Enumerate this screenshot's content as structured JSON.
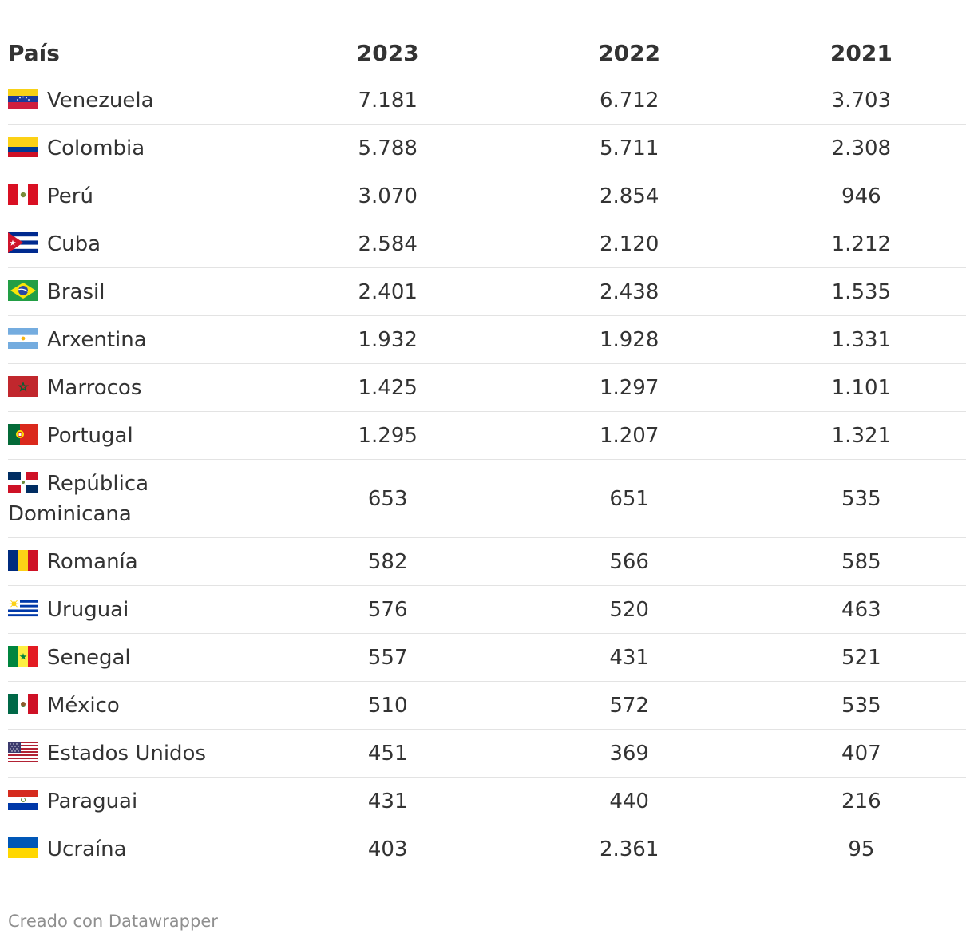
{
  "chart_data": {
    "type": "table",
    "columns": [
      "País",
      "2023",
      "2022",
      "2021"
    ],
    "rows": [
      {
        "country": "Venezuela",
        "flag": "venezuela-flag-icon",
        "v2023": "7.181",
        "v2022": "6.712",
        "v2021": "3.703"
      },
      {
        "country": "Colombia",
        "flag": "colombia-flag-icon",
        "v2023": "5.788",
        "v2022": "5.711",
        "v2021": "2.308"
      },
      {
        "country": "Perú",
        "flag": "peru-flag-icon",
        "v2023": "3.070",
        "v2022": "2.854",
        "v2021": "946"
      },
      {
        "country": "Cuba",
        "flag": "cuba-flag-icon",
        "v2023": "2.584",
        "v2022": "2.120",
        "v2021": "1.212"
      },
      {
        "country": "Brasil",
        "flag": "brazil-flag-icon",
        "v2023": "2.401",
        "v2022": "2.438",
        "v2021": "1.535"
      },
      {
        "country": "Arxentina",
        "flag": "argentina-flag-icon",
        "v2023": "1.932",
        "v2022": "1.928",
        "v2021": "1.331"
      },
      {
        "country": "Marrocos",
        "flag": "morocco-flag-icon",
        "v2023": "1.425",
        "v2022": "1.297",
        "v2021": "1.101"
      },
      {
        "country": "Portugal",
        "flag": "portugal-flag-icon",
        "v2023": "1.295",
        "v2022": "1.207",
        "v2021": "1.321"
      },
      {
        "country": "República Dominicana",
        "flag": "dominican-republic-flag-icon",
        "v2023": "653",
        "v2022": "651",
        "v2021": "535"
      },
      {
        "country": "Romanía",
        "flag": "romania-flag-icon",
        "v2023": "582",
        "v2022": "566",
        "v2021": "585"
      },
      {
        "country": "Uruguai",
        "flag": "uruguay-flag-icon",
        "v2023": "576",
        "v2022": "520",
        "v2021": "463"
      },
      {
        "country": "Senegal",
        "flag": "senegal-flag-icon",
        "v2023": "557",
        "v2022": "431",
        "v2021": "521"
      },
      {
        "country": "México",
        "flag": "mexico-flag-icon",
        "v2023": "510",
        "v2022": "572",
        "v2021": "535"
      },
      {
        "country": "Estados Unidos",
        "flag": "usa-flag-icon",
        "v2023": "451",
        "v2022": "369",
        "v2021": "407"
      },
      {
        "country": "Paraguai",
        "flag": "paraguay-flag-icon",
        "v2023": "431",
        "v2022": "440",
        "v2021": "216"
      },
      {
        "country": "Ucraína",
        "flag": "ukraine-flag-icon",
        "v2023": "403",
        "v2022": "2.361",
        "v2021": "95"
      }
    ]
  },
  "footer": "Creado con Datawrapper"
}
